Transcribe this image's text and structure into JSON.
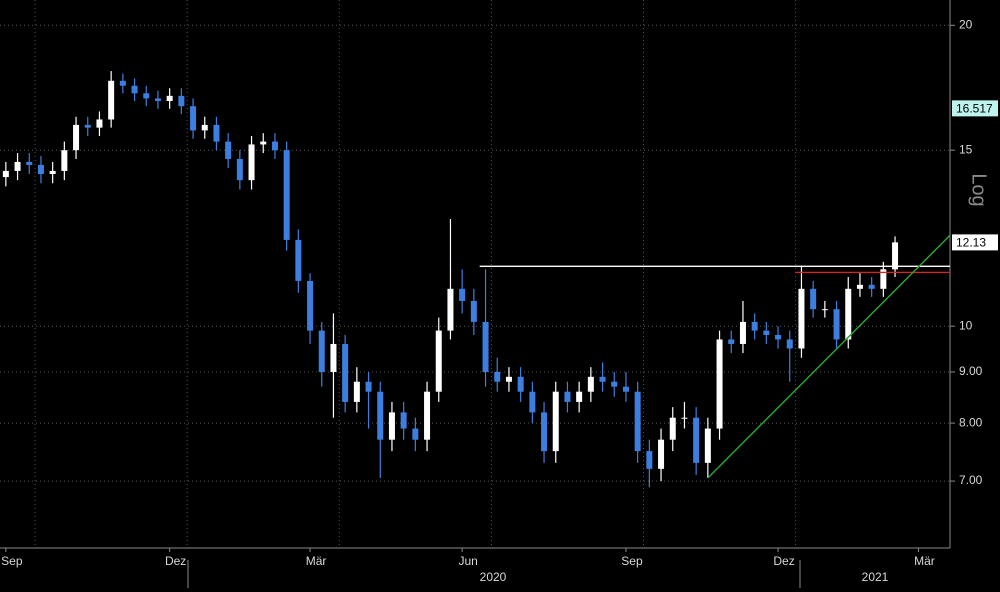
{
  "chart_data": {
    "type": "candlestick",
    "log_scale": true,
    "grid": true,
    "axis_label": "Log",
    "categories": [
      "Sep",
      null,
      null,
      null,
      null,
      null,
      null,
      null,
      null,
      null,
      null,
      null,
      null,
      null,
      "Dez",
      null,
      null,
      null,
      null,
      null,
      null,
      null,
      null,
      null,
      null,
      null,
      "Mär",
      null,
      null,
      null,
      null,
      null,
      null,
      null,
      null,
      null,
      null,
      null,
      null,
      "Jun",
      null,
      null,
      null,
      null,
      null,
      null,
      null,
      null,
      null,
      null,
      null,
      null,
      null,
      "Sep",
      null,
      null,
      null,
      null,
      null,
      null,
      null,
      null,
      null,
      null,
      null,
      null,
      "Dez",
      null,
      null,
      null,
      null,
      null,
      null,
      null,
      null,
      null,
      null,
      null,
      "Mär",
      null,
      null
    ],
    "year_labels": [
      "2020",
      "2021"
    ],
    "open": [
      14.1,
      14.3,
      14.6,
      14.5,
      14.2,
      14.3,
      15.0,
      15.9,
      15.8,
      16.1,
      17.6,
      17.4,
      17.1,
      16.9,
      16.8,
      17.0,
      16.6,
      15.7,
      15.9,
      15.3,
      14.7,
      14.0,
      15.2,
      15.3,
      15.0,
      12.2,
      11.1,
      9.9,
      9.0,
      9.6,
      8.4,
      8.8,
      8.6,
      7.7,
      8.2,
      7.9,
      7.7,
      8.6,
      9.9,
      10.9,
      10.6,
      10.1,
      9.0,
      8.8,
      8.9,
      8.6,
      8.2,
      7.5,
      8.6,
      8.4,
      8.6,
      8.9,
      8.8,
      8.7,
      8.6,
      7.5,
      7.2,
      7.7,
      8.1,
      8.1,
      7.3,
      7.9,
      9.7,
      9.6,
      10.1,
      9.9,
      9.8,
      9.7,
      9.5,
      10.9,
      10.4,
      10.4,
      9.7,
      10.9,
      11.0,
      10.9,
      11.4,
      null,
      null,
      null,
      null
    ],
    "high": [
      14.6,
      14.9,
      14.9,
      14.8,
      14.6,
      15.3,
      16.2,
      16.2,
      16.4,
      18.0,
      17.9,
      17.7,
      17.4,
      17.2,
      17.3,
      17.3,
      16.9,
      16.2,
      16.2,
      15.6,
      15.0,
      15.5,
      15.6,
      15.6,
      15.3,
      12.5,
      11.3,
      10.1,
      10.3,
      9.8,
      9.1,
      9.0,
      8.8,
      8.4,
      8.4,
      8.1,
      8.8,
      10.2,
      12.8,
      11.4,
      10.9,
      11.4,
      9.3,
      9.1,
      9.1,
      8.8,
      8.4,
      8.8,
      8.8,
      8.8,
      9.1,
      9.2,
      9.0,
      9.0,
      8.8,
      7.7,
      7.9,
      8.3,
      8.4,
      8.3,
      8.1,
      9.9,
      9.9,
      10.6,
      10.3,
      10.1,
      10.0,
      9.9,
      11.5,
      11.1,
      10.6,
      10.6,
      11.2,
      11.3,
      11.2,
      11.6,
      12.3,
      null,
      null,
      null,
      null
    ],
    "low": [
      13.8,
      14.0,
      14.2,
      13.9,
      13.9,
      14.0,
      14.7,
      15.5,
      15.5,
      15.8,
      17.1,
      16.8,
      16.6,
      16.5,
      16.5,
      16.3,
      15.4,
      15.4,
      15.0,
      14.4,
      13.7,
      13.7,
      14.9,
      14.7,
      11.9,
      10.8,
      9.6,
      8.7,
      8.1,
      8.2,
      8.2,
      7.9,
      7.05,
      7.5,
      7.7,
      7.5,
      7.5,
      8.4,
      9.7,
      10.3,
      9.8,
      8.7,
      8.6,
      8.6,
      8.4,
      8.0,
      7.3,
      7.3,
      8.2,
      8.2,
      8.4,
      8.6,
      8.5,
      8.4,
      7.3,
      6.9,
      7.0,
      7.5,
      7.9,
      7.1,
      7.05,
      7.7,
      9.4,
      9.4,
      9.7,
      9.6,
      9.5,
      8.8,
      9.3,
      10.2,
      10.2,
      9.5,
      9.5,
      10.7,
      10.7,
      10.7,
      11.2,
      null,
      null,
      null,
      null
    ],
    "close": [
      14.3,
      14.6,
      14.5,
      14.2,
      14.3,
      15.0,
      15.9,
      15.8,
      16.1,
      17.6,
      17.4,
      17.1,
      16.9,
      16.8,
      17.0,
      16.6,
      15.7,
      15.9,
      15.3,
      14.7,
      14.0,
      15.2,
      15.3,
      15.0,
      12.2,
      11.1,
      9.9,
      9.0,
      9.6,
      8.4,
      8.8,
      8.6,
      7.7,
      8.2,
      7.9,
      7.7,
      8.6,
      9.9,
      10.9,
      10.6,
      10.1,
      9.0,
      8.8,
      8.9,
      8.6,
      8.2,
      7.5,
      8.6,
      8.4,
      8.6,
      8.9,
      8.8,
      8.7,
      8.6,
      7.5,
      7.2,
      7.7,
      8.1,
      8.1,
      7.3,
      7.9,
      9.7,
      9.6,
      10.1,
      9.9,
      9.8,
      9.7,
      9.5,
      10.9,
      10.4,
      10.4,
      9.7,
      10.9,
      11.0,
      10.9,
      11.4,
      12.13,
      null,
      null,
      null,
      null
    ],
    "up_color": "#ffffff",
    "down_color": "#3d7fe0",
    "ylim": [
      6.0,
      21.2
    ],
    "yticks": [
      20,
      15,
      10,
      {
        "value": 9,
        "label": "9.00"
      },
      {
        "value": 8,
        "label": "8.00"
      },
      {
        "value": 7,
        "label": "7.00"
      }
    ],
    "last_price": 12.13,
    "indicator_price": 16.517,
    "indicator_color": "#bff3ee",
    "levels": [
      {
        "value": 11.48,
        "from": 41,
        "color": "#ffffff"
      },
      {
        "value": 11.32,
        "from": 68,
        "color": "#e02020"
      }
    ],
    "trendline": {
      "from": [
        60,
        7.05
      ],
      "to": [
        80,
        12.1
      ],
      "color": "#2ea02e"
    }
  }
}
